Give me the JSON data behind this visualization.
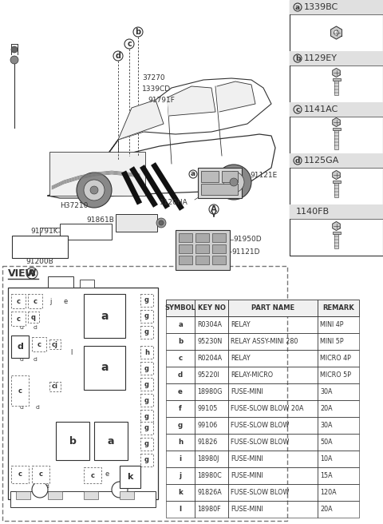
{
  "bg_color": "#ffffff",
  "line_color": "#333333",
  "table_data": [
    [
      "SYMBOL",
      "KEY NO",
      "PART NAME",
      "REMARK"
    ],
    [
      "a",
      "R0304A",
      "RELAY",
      "MINI 4P"
    ],
    [
      "b",
      "95230N",
      "RELAY ASSY-MINI 280",
      "MINI 5P"
    ],
    [
      "c",
      "R0204A",
      "RELAY",
      "MICRO 4P"
    ],
    [
      "d",
      "95220I",
      "RELAY-MICRO",
      "MICRO 5P"
    ],
    [
      "e",
      "18980G",
      "FUSE-MINI",
      "30A"
    ],
    [
      "f",
      "99105",
      "FUSE-SLOW BLOW 20A",
      "20A"
    ],
    [
      "g",
      "99106",
      "FUSE-SLOW BLOW",
      "30A"
    ],
    [
      "h",
      "91826",
      "FUSE-SLOW BLOW",
      "50A"
    ],
    [
      "i",
      "18980J",
      "FUSE-MINI",
      "10A"
    ],
    [
      "j",
      "18980C",
      "FUSE-MINI",
      "15A"
    ],
    [
      "k",
      "91826A",
      "FUSE-SLOW BLOW",
      "120A"
    ],
    [
      "l",
      "18980F",
      "FUSE-MINI",
      "20A"
    ]
  ],
  "bolt_panel": [
    {
      "label": "a",
      "part": "1339BC",
      "type": "nut"
    },
    {
      "label": "b",
      "part": "1129EY",
      "type": "bolt_short"
    },
    {
      "label": "c",
      "part": "1141AC",
      "type": "bolt_long"
    },
    {
      "label": "d",
      "part": "1125GA",
      "type": "bolt_short"
    },
    {
      "label": "",
      "part": "1140FB",
      "type": "bolt_short"
    }
  ]
}
